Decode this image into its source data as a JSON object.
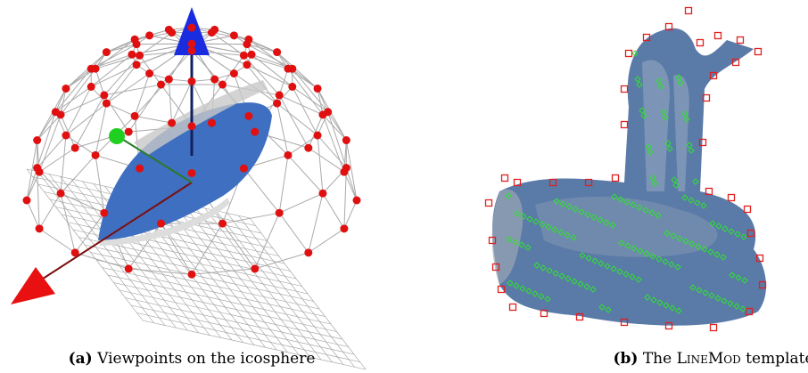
{
  "figure": {
    "subfigures": [
      {
        "label": "(a)",
        "caption": "Viewpoints on the icosphere"
      },
      {
        "label": "(b)",
        "caption_prefix": "The",
        "caption_name": "LineMod",
        "caption_suffix": "template"
      }
    ]
  }
}
